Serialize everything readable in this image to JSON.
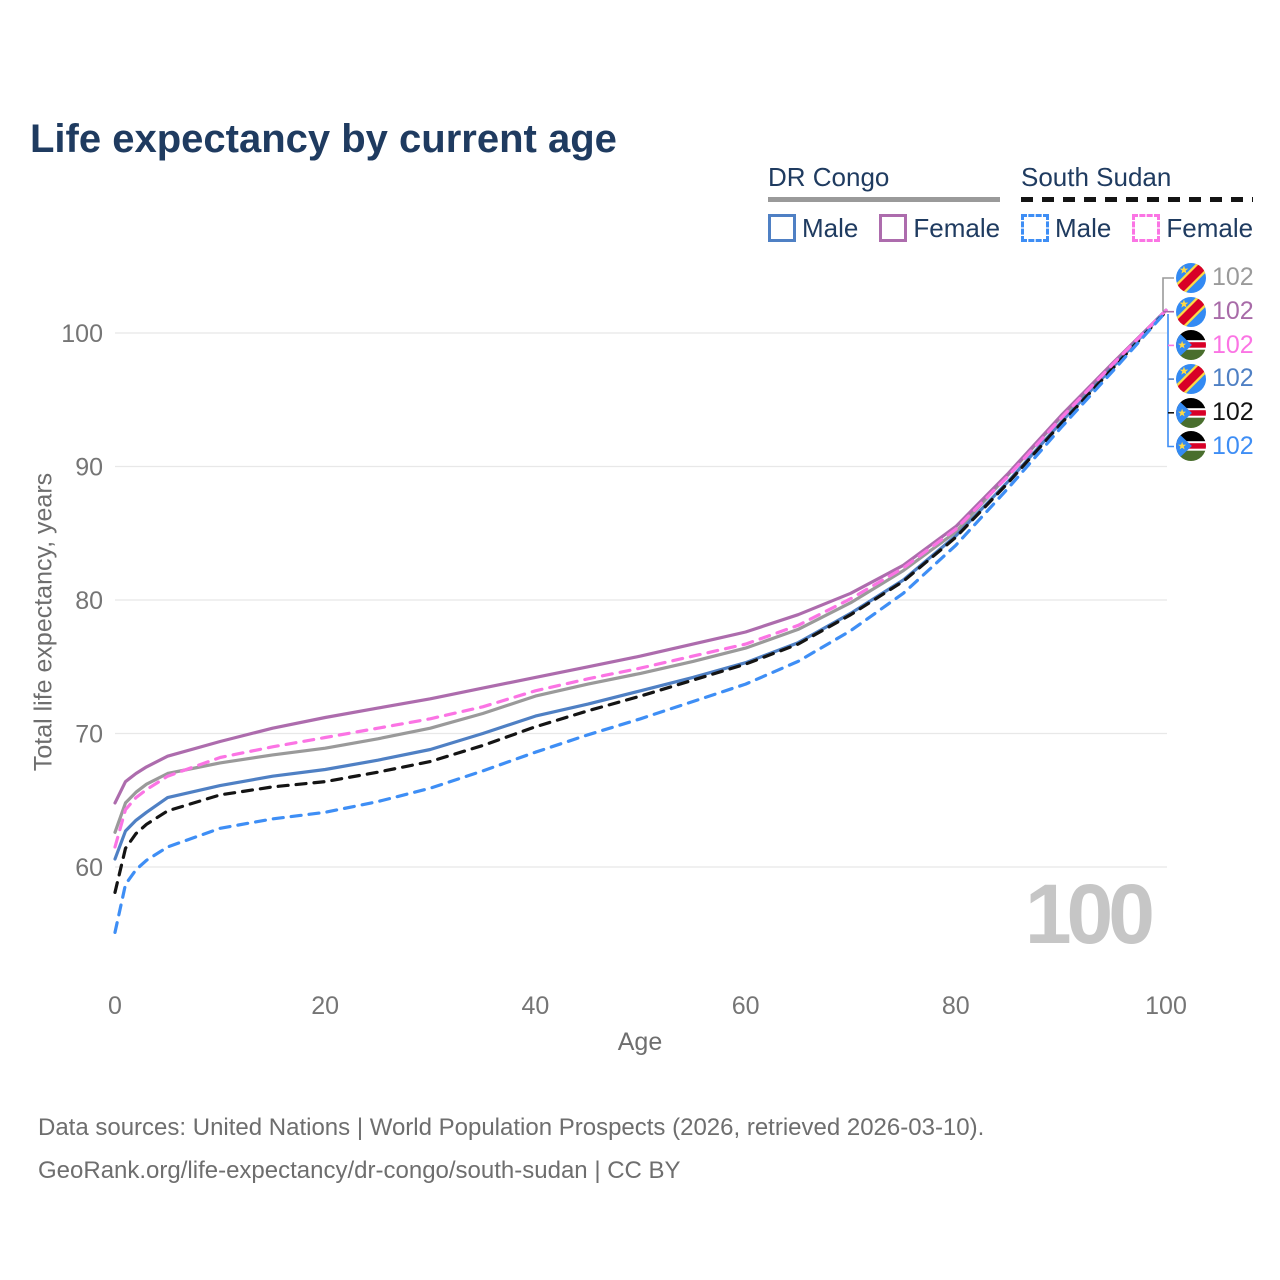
{
  "title": "Life expectancy by current age",
  "legend": {
    "groups": [
      {
        "country": "DR Congo",
        "line_style": "solid",
        "underline_color": "#9a9a9a",
        "items": [
          {
            "label": "Male",
            "color": "#4f80c4",
            "dashed": false
          },
          {
            "label": "Female",
            "color": "#ad6cad",
            "dashed": false
          }
        ]
      },
      {
        "country": "South Sudan",
        "line_style": "dashed",
        "underline_color": "#141414",
        "items": [
          {
            "label": "Male",
            "color": "#3e8ef5",
            "dashed": true
          },
          {
            "label": "Female",
            "color": "#fb74e4",
            "dashed": true
          }
        ]
      }
    ]
  },
  "chart_data": {
    "type": "line",
    "title": "Life expectancy by current age",
    "xlabel": "Age",
    "ylabel": "Total life expectancy, years",
    "xlim": [
      0,
      100
    ],
    "yticks": [
      100,
      90,
      80,
      70,
      60
    ],
    "xticks": [
      0,
      20,
      40,
      60,
      80,
      100
    ],
    "grid": "horizontal-only",
    "x": [
      0,
      1,
      2,
      3,
      5,
      10,
      15,
      20,
      25,
      30,
      35,
      40,
      45,
      50,
      55,
      60,
      65,
      70,
      75,
      80,
      85,
      90,
      95,
      100
    ],
    "series": [
      {
        "id": "drc-both",
        "name": "DR Congo Both sexes",
        "country": "DR Congo",
        "sex": "both",
        "color": "#9a9a9a",
        "dash": "solid",
        "values": [
          62.6,
          64.8,
          65.6,
          66.2,
          67.0,
          67.8,
          68.4,
          68.9,
          69.6,
          70.4,
          71.5,
          72.8,
          73.7,
          74.5,
          75.4,
          76.4,
          77.8,
          79.8,
          82.2,
          85.1,
          89.4,
          93.7,
          97.7,
          101.7
        ]
      },
      {
        "id": "drc-female",
        "name": "DR Congo Female",
        "country": "DR Congo",
        "sex": "female",
        "color": "#ad6cad",
        "dash": "solid",
        "values": [
          64.8,
          66.4,
          67.0,
          67.5,
          68.3,
          69.4,
          70.4,
          71.2,
          71.9,
          72.6,
          73.4,
          74.2,
          75.0,
          75.8,
          76.7,
          77.6,
          78.9,
          80.5,
          82.6,
          85.5,
          89.5,
          93.8,
          97.8,
          101.7
        ]
      },
      {
        "id": "drc-male",
        "name": "DR Congo Male",
        "country": "DR Congo",
        "sex": "male",
        "color": "#4f80c4",
        "dash": "solid",
        "values": [
          60.6,
          62.7,
          63.5,
          64.1,
          65.2,
          66.1,
          66.8,
          67.3,
          68.0,
          68.8,
          70.0,
          71.3,
          72.2,
          73.2,
          74.2,
          75.3,
          76.8,
          79.0,
          81.5,
          84.8,
          88.9,
          93.3,
          97.5,
          101.7
        ]
      },
      {
        "id": "ssd-both",
        "name": "South Sudan Both sexes",
        "country": "South Sudan",
        "sex": "both",
        "color": "#141414",
        "dash": "dashed",
        "values": [
          58.1,
          61.4,
          62.5,
          63.2,
          64.2,
          65.4,
          66.0,
          66.4,
          67.1,
          67.9,
          69.1,
          70.5,
          71.7,
          72.8,
          74.0,
          75.2,
          76.7,
          78.9,
          81.4,
          84.7,
          88.8,
          93.2,
          97.4,
          101.6
        ]
      },
      {
        "id": "ssd-female",
        "name": "South Sudan Female",
        "country": "South Sudan",
        "sex": "female",
        "color": "#fb74e4",
        "dash": "dashed",
        "values": [
          61.5,
          64.3,
          65.2,
          65.8,
          66.8,
          68.2,
          69.0,
          69.7,
          70.4,
          71.1,
          72.0,
          73.2,
          74.1,
          74.9,
          75.8,
          76.7,
          78.1,
          80.1,
          82.4,
          85.3,
          89.3,
          93.6,
          97.7,
          101.7
        ]
      },
      {
        "id": "ssd-male",
        "name": "South Sudan Male",
        "country": "South Sudan",
        "sex": "male",
        "color": "#3e8ef5",
        "dash": "dashed",
        "values": [
          55.1,
          58.7,
          59.8,
          60.5,
          61.5,
          62.9,
          63.6,
          64.1,
          64.9,
          65.9,
          67.2,
          68.6,
          69.9,
          71.1,
          72.4,
          73.7,
          75.4,
          77.7,
          80.5,
          84.1,
          88.4,
          92.9,
          97.2,
          101.6
        ]
      }
    ]
  },
  "endpoint_labels": [
    {
      "flag": "drc",
      "country": "DR Congo",
      "series": "both",
      "value": "102",
      "color": "#9a9a9a"
    },
    {
      "flag": "drc",
      "country": "DR Congo",
      "series": "female",
      "value": "102",
      "color": "#a86ba8"
    },
    {
      "flag": "ssd",
      "country": "South Sudan",
      "series": "female",
      "value": "102",
      "color": "#fb74e4"
    },
    {
      "flag": "drc",
      "country": "DR Congo",
      "series": "male",
      "value": "102",
      "color": "#4f80c4"
    },
    {
      "flag": "ssd",
      "country": "South Sudan",
      "series": "both",
      "value": "102",
      "color": "#141414"
    },
    {
      "flag": "ssd",
      "country": "South Sudan",
      "series": "male",
      "value": "102",
      "color": "#3e8ef5"
    }
  ],
  "age_indicator": "100",
  "axis": {
    "y_title": "Total life expectancy, years",
    "x_title": "Age"
  },
  "footer": {
    "line1": "Data sources: United Nations | World Population Prospects (2026, retrieved 2026-03-10).",
    "line2": "GeoRank.org/life-expectancy/dr-congo/south-sudan | CC BY"
  },
  "colors": {
    "title_text": "#1f3b60",
    "tick_text": "#757575",
    "gridline": "#e8e8e8",
    "footer_text": "#6e6e6e",
    "age_indicator": "#c6c6c6"
  }
}
